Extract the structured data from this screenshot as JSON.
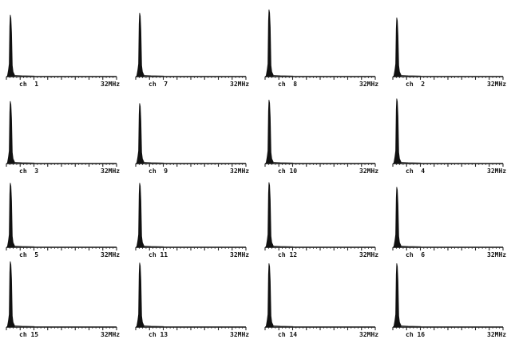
{
  "chart_data": {
    "type": "bar",
    "layout": "4x4 grid of small-multiple spectra",
    "x_unit": "MHz",
    "xlim": [
      0,
      32
    ],
    "ylim": [
      0,
      1
    ],
    "grid": false,
    "panels": [
      {
        "label": "ch  1",
        "max_label": "32MHz",
        "peak_x": 1.2,
        "peak_y": 0.92
      },
      {
        "label": "ch  7",
        "max_label": "32MHz",
        "peak_x": 1.2,
        "peak_y": 0.95
      },
      {
        "label": "ch  8",
        "max_label": "32MHz",
        "peak_x": 1.2,
        "peak_y": 1.0
      },
      {
        "label": "ch  2",
        "max_label": "32MHz",
        "peak_x": 1.2,
        "peak_y": 0.88
      },
      {
        "label": "ch  3",
        "max_label": "32MHz",
        "peak_x": 1.2,
        "peak_y": 0.93
      },
      {
        "label": "ch  9",
        "max_label": "32MHz",
        "peak_x": 1.2,
        "peak_y": 0.9
      },
      {
        "label": "ch 10",
        "max_label": "32MHz",
        "peak_x": 1.2,
        "peak_y": 0.95
      },
      {
        "label": "ch  4",
        "max_label": "32MHz",
        "peak_x": 1.2,
        "peak_y": 0.97
      },
      {
        "label": "ch  5",
        "max_label": "32MHz",
        "peak_x": 1.2,
        "peak_y": 0.96
      },
      {
        "label": "ch 11",
        "max_label": "32MHz",
        "peak_x": 1.2,
        "peak_y": 0.96
      },
      {
        "label": "ch 12",
        "max_label": "32MHz",
        "peak_x": 1.2,
        "peak_y": 0.97
      },
      {
        "label": "ch  6",
        "max_label": "32MHz",
        "peak_x": 1.2,
        "peak_y": 0.9
      },
      {
        "label": "ch 15",
        "max_label": "32MHz",
        "peak_x": 1.2,
        "peak_y": 0.98
      },
      {
        "label": "ch 13",
        "max_label": "32MHz",
        "peak_x": 1.2,
        "peak_y": 0.96
      },
      {
        "label": "ch 14",
        "max_label": "32MHz",
        "peak_x": 1.2,
        "peak_y": 0.95
      },
      {
        "label": "ch 16",
        "max_label": "32MHz",
        "peak_x": 1.2,
        "peak_y": 0.95
      }
    ]
  }
}
